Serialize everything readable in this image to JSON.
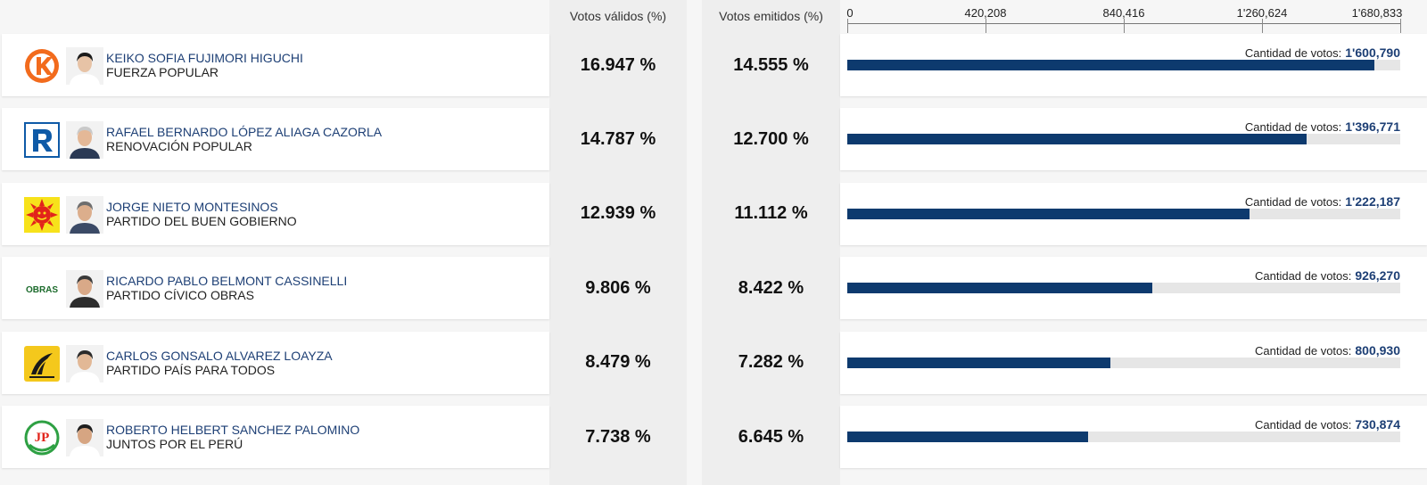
{
  "header": {
    "votos_validos": "Votos válidos (%)",
    "votos_emitidos": "Votos emitidos (%)"
  },
  "axis": {
    "ticks": [
      {
        "value": 0,
        "label": "0"
      },
      {
        "value": 420208,
        "label": "420,208"
      },
      {
        "value": 840416,
        "label": "840,416"
      },
      {
        "value": 1260624,
        "label": "1'260,624"
      },
      {
        "value": 1680833,
        "label": "1'680,833"
      }
    ]
  },
  "chart_data": {
    "type": "bar",
    "orientation": "horizontal",
    "xlim": [
      0,
      1680833
    ],
    "categories": [
      "KEIKO SOFIA FUJIMORI HIGUCHI",
      "RAFAEL BERNARDO LÓPEZ ALIAGA CAZORLA",
      "JORGE NIETO MONTESINOS",
      "RICARDO PABLO BELMONT CASSINELLI",
      "CARLOS GONSALO ALVAREZ LOAYZA",
      "ROBERTO HELBERT SANCHEZ PALOMINO"
    ],
    "values": [
      1600790,
      1396771,
      1222187,
      926270,
      800930,
      730874
    ]
  },
  "rows": [
    {
      "candidate": "KEIKO SOFIA FUJIMORI HIGUCHI",
      "party": "FUERZA POPULAR",
      "validos": "16.947 %",
      "emitidos": "14.555 %",
      "cantidad_label": "Cantidad de votos:",
      "votos_text": "1'600,790",
      "votos": 1600790,
      "logo": "fuerza-popular-logo"
    },
    {
      "candidate": "RAFAEL BERNARDO LÓPEZ ALIAGA CAZORLA",
      "party": "RENOVACIÓN POPULAR",
      "validos": "14.787 %",
      "emitidos": "12.700 %",
      "cantidad_label": "Cantidad de votos:",
      "votos_text": "1'396,771",
      "votos": 1396771,
      "logo": "renovacion-popular-logo"
    },
    {
      "candidate": "JORGE NIETO MONTESINOS",
      "party": "PARTIDO DEL BUEN GOBIERNO",
      "validos": "12.939 %",
      "emitidos": "11.112 %",
      "cantidad_label": "Cantidad de votos:",
      "votos_text": "1'222,187",
      "votos": 1222187,
      "logo": "buen-gobierno-logo"
    },
    {
      "candidate": "RICARDO PABLO BELMONT CASSINELLI",
      "party": "PARTIDO CÍVICO OBRAS",
      "validos": "9.806 %",
      "emitidos": "8.422 %",
      "cantidad_label": "Cantidad de votos:",
      "votos_text": "926,270",
      "votos": 926270,
      "logo": "obras-logo",
      "logo_text": "OBRAS"
    },
    {
      "candidate": "CARLOS GONSALO ALVAREZ LOAYZA",
      "party": "PARTIDO PAÍS PARA TODOS",
      "validos": "8.479 %",
      "emitidos": "7.282 %",
      "cantidad_label": "Cantidad de votos:",
      "votos_text": "800,930",
      "votos": 800930,
      "logo": "pais-para-todos-logo"
    },
    {
      "candidate": "ROBERTO HELBERT SANCHEZ PALOMINO",
      "party": "JUNTOS POR EL PERÚ",
      "validos": "7.738 %",
      "emitidos": "6.645 %",
      "cantidad_label": "Cantidad de votos:",
      "votos_text": "730,874",
      "votos": 730874,
      "logo": "juntos-por-el-peru-logo"
    }
  ],
  "colors": {
    "bar": "#0d3a6e",
    "track": "#e6e6e6",
    "name": "#1d3f75"
  }
}
